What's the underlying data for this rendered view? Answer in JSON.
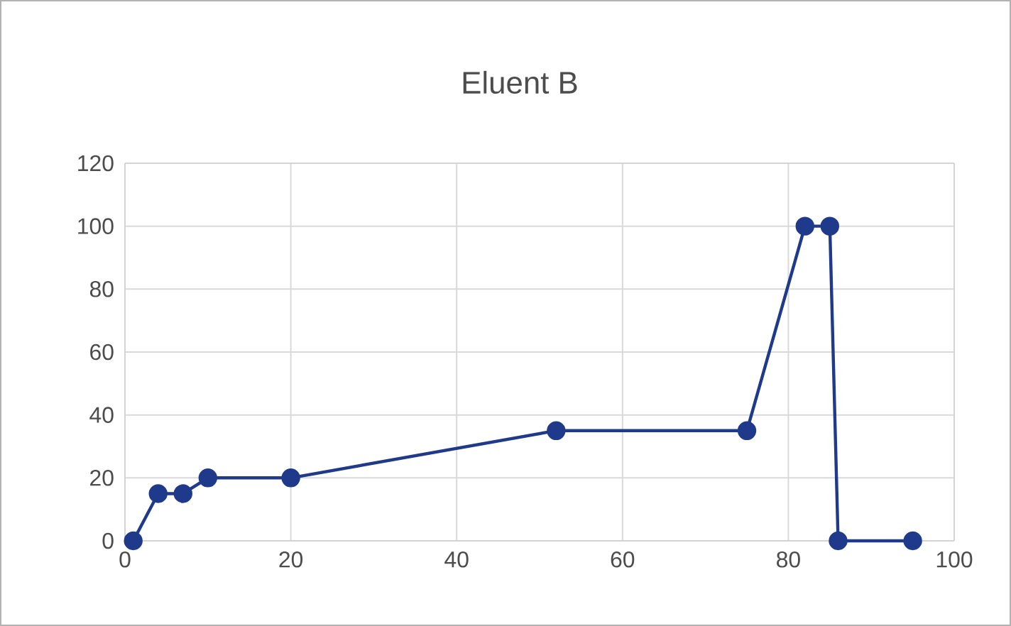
{
  "chart_data": {
    "type": "line",
    "title": "Eluent B",
    "x": [
      1,
      4,
      7,
      10,
      20,
      52,
      75,
      82,
      85,
      86,
      95
    ],
    "series": [
      {
        "color": "#1f3a8a",
        "values": [
          0,
          15,
          15,
          20,
          20,
          35,
          35,
          100,
          100,
          0,
          0
        ]
      }
    ],
    "xlim": [
      0,
      100
    ],
    "xticks": [
      0,
      20,
      40,
      60,
      80,
      100
    ],
    "ylim": [
      0,
      120
    ],
    "yticks": [
      0,
      20,
      40,
      60,
      80,
      100,
      120
    ],
    "grid": true,
    "marker": "circle",
    "line_style": "solid"
  }
}
